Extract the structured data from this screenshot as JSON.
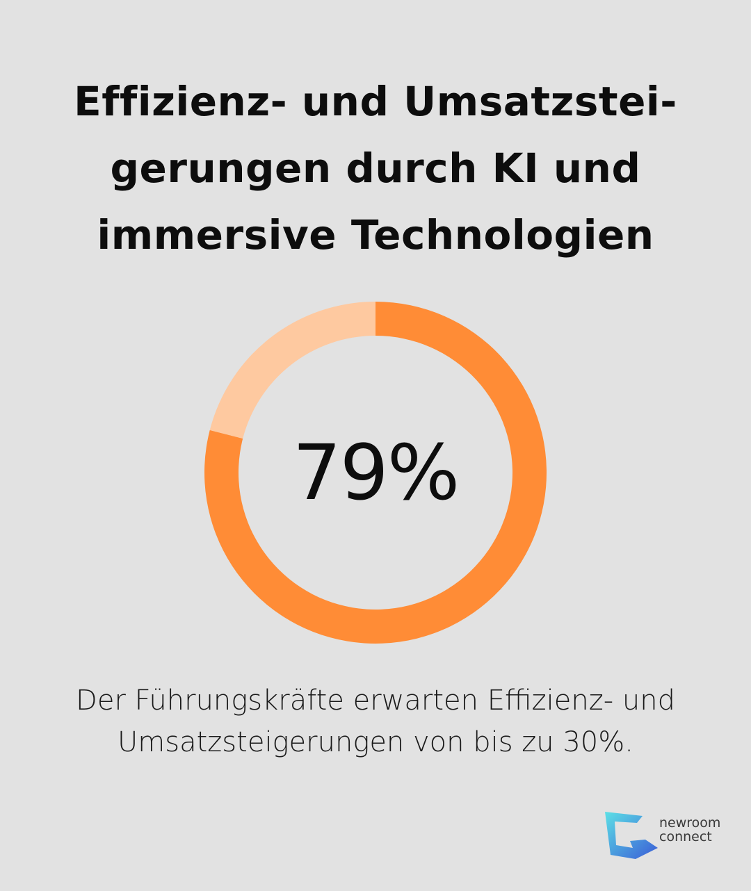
{
  "title_lines": [
    "Effizienz- und Umsatzstei-",
    "gerungen durch KI und",
    "immersive Technologien"
  ],
  "chart_data": {
    "type": "pie",
    "style": "donut",
    "center_label": "79%",
    "slices": [
      {
        "value": 79,
        "color": "#ff8c36"
      },
      {
        "value": 21,
        "color": "#fec9a0"
      }
    ]
  },
  "caption_lines": [
    "Der Führungskräfte erwarten Effizienz- und",
    "Umsatzsteigerungen von bis zu 30%."
  ],
  "logo": {
    "line1": "newroom",
    "line2": "connect",
    "colors": [
      "#5ce0e6",
      "#3a5bd6"
    ]
  }
}
